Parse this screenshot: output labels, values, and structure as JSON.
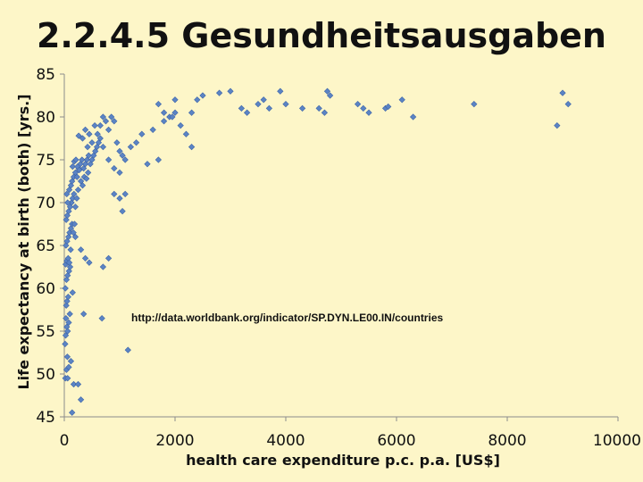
{
  "slide": {
    "title": "2.2.4.5 Gesundheitsausgaben"
  },
  "chart_data": {
    "type": "scatter",
    "title": "",
    "xlabel": "health care expenditure p.c. p.a. [US$]",
    "ylabel": "Life expectancy at birth (both) [yrs.]",
    "xlim": [
      0,
      10000
    ],
    "ylim": [
      45,
      85
    ],
    "xticks": [
      "0",
      "2000",
      "4000",
      "6000",
      "8000",
      "10000"
    ],
    "yticks": [
      "45",
      "50",
      "55",
      "60",
      "65",
      "70",
      "75",
      "80",
      "85"
    ],
    "grid": false,
    "marker": "diamond",
    "marker_color": "#5b84c4",
    "annotation": "http://data.worldbank.org/indicator/SP.DYN.LE00.IN/countries",
    "series": [
      {
        "points": [
          [
            20,
            49.5
          ],
          [
            40,
            50.5
          ],
          [
            60,
            49.5
          ],
          [
            80,
            50.8
          ],
          [
            120,
            51.5
          ],
          [
            170,
            48.8
          ],
          [
            250,
            48.8
          ],
          [
            300,
            47
          ],
          [
            140,
            45.5
          ],
          [
            55,
            52
          ],
          [
            15,
            53.5
          ],
          [
            25,
            54.5
          ],
          [
            45,
            55.5
          ],
          [
            60,
            55
          ],
          [
            80,
            56
          ],
          [
            100,
            57
          ],
          [
            30,
            56.5
          ],
          [
            35,
            58
          ],
          [
            50,
            58.5
          ],
          [
            70,
            59
          ],
          [
            20,
            60
          ],
          [
            40,
            61
          ],
          [
            60,
            61.5
          ],
          [
            85,
            62
          ],
          [
            105,
            62.5
          ],
          [
            25,
            62.8
          ],
          [
            45,
            63.2
          ],
          [
            70,
            63.5
          ],
          [
            90,
            63
          ],
          [
            115,
            64.5
          ],
          [
            30,
            65
          ],
          [
            50,
            65.5
          ],
          [
            75,
            66
          ],
          [
            95,
            66.5
          ],
          [
            120,
            67
          ],
          [
            140,
            67.5
          ],
          [
            165,
            66.5
          ],
          [
            185,
            67.5
          ],
          [
            35,
            68
          ],
          [
            55,
            68.5
          ],
          [
            80,
            69
          ],
          [
            105,
            69.5
          ],
          [
            130,
            70
          ],
          [
            150,
            70.5
          ],
          [
            175,
            71
          ],
          [
            200,
            69.5
          ],
          [
            225,
            70.5
          ],
          [
            250,
            71.5
          ],
          [
            60,
            70
          ],
          [
            45,
            71
          ],
          [
            90,
            71.5
          ],
          [
            120,
            72
          ],
          [
            140,
            72.5
          ],
          [
            170,
            73
          ],
          [
            200,
            73.5
          ],
          [
            230,
            73
          ],
          [
            260,
            74
          ],
          [
            290,
            74.5
          ],
          [
            320,
            75
          ],
          [
            350,
            74
          ],
          [
            380,
            74.5
          ],
          [
            410,
            75
          ],
          [
            440,
            75.5
          ],
          [
            470,
            74.5
          ],
          [
            500,
            75
          ],
          [
            530,
            75.5
          ],
          [
            560,
            76
          ],
          [
            590,
            76.5
          ],
          [
            620,
            77
          ],
          [
            650,
            77.5
          ],
          [
            150,
            74.2
          ],
          [
            180,
            74.8
          ],
          [
            210,
            75
          ],
          [
            240,
            74.2
          ],
          [
            270,
            73.8
          ],
          [
            300,
            72.5
          ],
          [
            330,
            72
          ],
          [
            360,
            73
          ],
          [
            400,
            72.8
          ],
          [
            430,
            73.5
          ],
          [
            600,
            78
          ],
          [
            650,
            79
          ],
          [
            700,
            80
          ],
          [
            750,
            79.5
          ],
          [
            800,
            78.5
          ],
          [
            850,
            80
          ],
          [
            900,
            79.5
          ],
          [
            950,
            77
          ],
          [
            1000,
            76
          ],
          [
            1050,
            75.5
          ],
          [
            700,
            76.5
          ],
          [
            800,
            75
          ],
          [
            900,
            74
          ],
          [
            1000,
            73.5
          ],
          [
            1100,
            75
          ],
          [
            1200,
            76.5
          ],
          [
            1300,
            77
          ],
          [
            1400,
            78
          ],
          [
            1500,
            74.5
          ],
          [
            900,
            71
          ],
          [
            1000,
            70.5
          ],
          [
            1100,
            71
          ],
          [
            1050,
            69
          ],
          [
            800,
            63.5
          ],
          [
            700,
            62.5
          ],
          [
            450,
            63
          ],
          [
            380,
            63.5
          ],
          [
            300,
            64.5
          ],
          [
            200,
            66
          ],
          [
            150,
            59.5
          ],
          [
            350,
            57
          ],
          [
            680,
            56.5
          ],
          [
            1150,
            52.8
          ],
          [
            1700,
            81.5
          ],
          [
            1800,
            80.5
          ],
          [
            1900,
            80
          ],
          [
            2000,
            80.5
          ],
          [
            2100,
            79
          ],
          [
            2200,
            78
          ],
          [
            2300,
            76.5
          ],
          [
            1700,
            75
          ],
          [
            2400,
            82
          ],
          [
            2500,
            82.5
          ],
          [
            2800,
            82.8
          ],
          [
            3000,
            83
          ],
          [
            3200,
            81
          ],
          [
            3300,
            80.5
          ],
          [
            3500,
            81.5
          ],
          [
            3600,
            82
          ],
          [
            3700,
            81
          ],
          [
            3900,
            83
          ],
          [
            4000,
            81.5
          ],
          [
            4300,
            81
          ],
          [
            4600,
            81
          ],
          [
            4700,
            80.5
          ],
          [
            4750,
            83
          ],
          [
            4800,
            82.5
          ],
          [
            5300,
            81.5
          ],
          [
            5400,
            81
          ],
          [
            5500,
            80.5
          ],
          [
            5800,
            81
          ],
          [
            5850,
            81.2
          ],
          [
            6100,
            82
          ],
          [
            6300,
            80
          ],
          [
            7400,
            81.5
          ],
          [
            8900,
            79
          ],
          [
            9000,
            82.8
          ],
          [
            9100,
            81.5
          ],
          [
            1800,
            79.5
          ],
          [
            2300,
            80.5
          ],
          [
            2000,
            82
          ],
          [
            1950,
            80
          ],
          [
            1600,
            78.5
          ],
          [
            450,
            78
          ],
          [
            550,
            79
          ],
          [
            500,
            77
          ],
          [
            420,
            76.5
          ],
          [
            380,
            78.5
          ],
          [
            330,
            77.5
          ],
          [
            260,
            77.8
          ]
        ]
      }
    ]
  }
}
